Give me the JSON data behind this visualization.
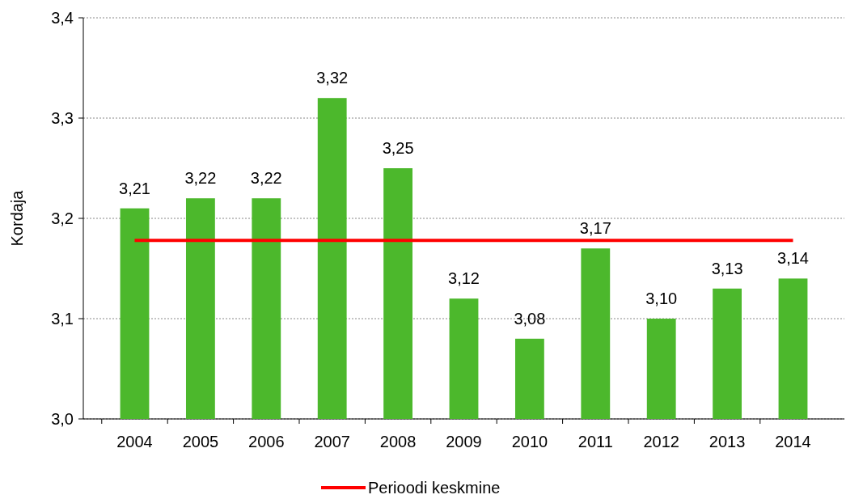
{
  "chart_data": {
    "type": "bar",
    "ylabel": "Kordaja",
    "categories": [
      "2004",
      "2005",
      "2006",
      "2007",
      "2008",
      "2009",
      "2010",
      "2011",
      "2012",
      "2013",
      "2014"
    ],
    "series": [
      {
        "color": "#4cb82c",
        "values": [
          3.21,
          3.22,
          3.22,
          3.32,
          3.25,
          3.12,
          3.08,
          3.17,
          3.1,
          3.13,
          3.14
        ],
        "value_labels": [
          "3,21",
          "3,22",
          "3,22",
          "3,32",
          "3,25",
          "3,12",
          "3,08",
          "3,17",
          "3,10",
          "3,13",
          "3,14"
        ]
      },
      {
        "type": "line",
        "name": "Perioodi keskmine",
        "color": "#ff0000",
        "values": [
          3.178,
          3.178,
          3.178,
          3.178,
          3.178,
          3.178,
          3.178,
          3.178,
          3.178,
          3.178,
          3.178
        ]
      }
    ],
    "ylim": [
      3.0,
      3.4
    ],
    "yticks": [
      {
        "value": 3.0,
        "label": "3,0"
      },
      {
        "value": 3.1,
        "label": "3,1"
      },
      {
        "value": 3.2,
        "label": "3,2"
      },
      {
        "value": 3.3,
        "label": "3,3"
      },
      {
        "value": 3.4,
        "label": "3,4"
      }
    ],
    "grid": "y",
    "legend": "bottom",
    "marker": "none",
    "line_style": "solid"
  }
}
